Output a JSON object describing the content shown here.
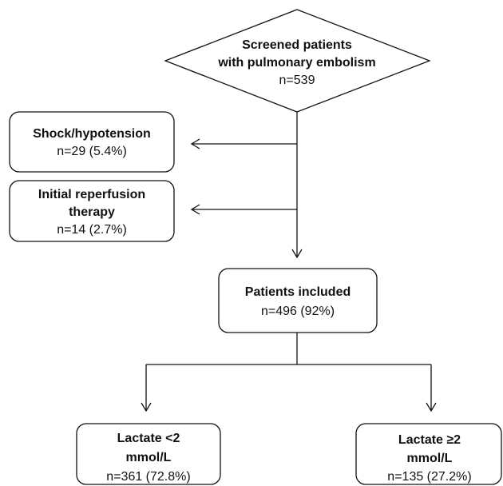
{
  "nodes": [
    {
      "title": [
        "Screened patients",
        "with pulmonary embolism"
      ],
      "count": "n=539"
    },
    {
      "title": [
        "Shock/hypotension"
      ],
      "count": "n=29 (5.4%)"
    },
    {
      "title": [
        "Initial reperfusion",
        "therapy"
      ],
      "count": "n=14 (2.7%)"
    },
    {
      "title": [
        "Patients included"
      ],
      "count": "n=496 (92%)"
    },
    {
      "title": [
        "Lactate <2",
        "mmol/L"
      ],
      "count": "n=361 (72.8%)"
    },
    {
      "title": [
        "Lactate ≥2",
        "mmol/L"
      ],
      "count": "n=135 (27.2%)"
    }
  ]
}
